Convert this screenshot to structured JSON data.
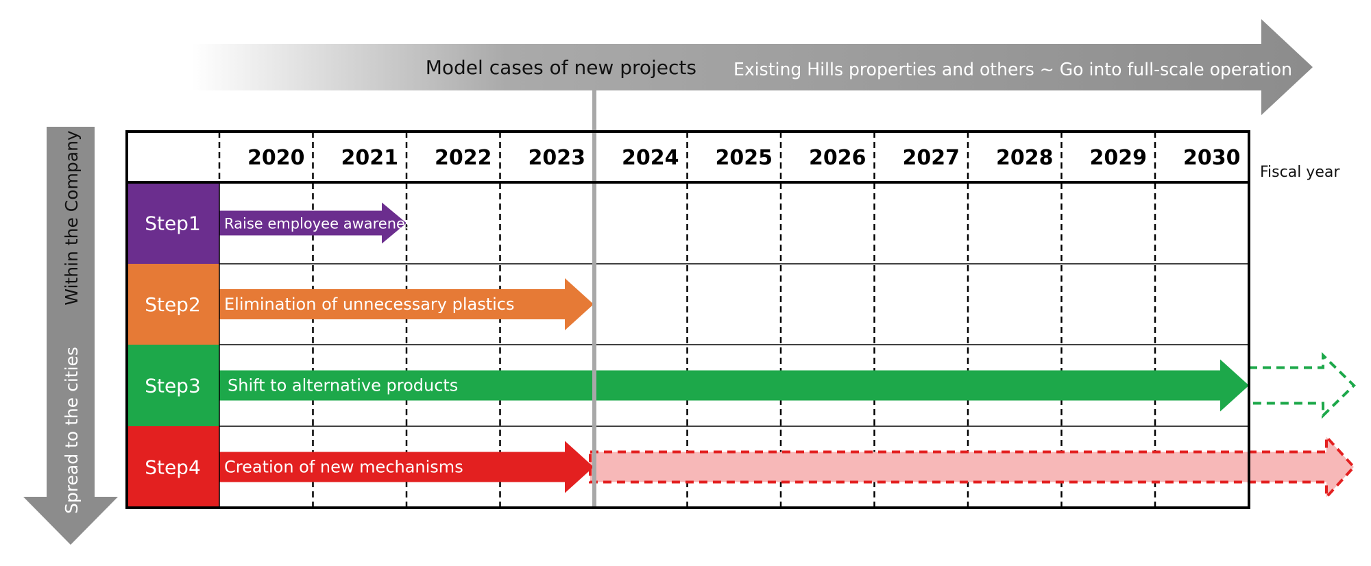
{
  "top_arrow": {
    "phase1_label": "Model cases of new projects",
    "phase2_label": "Existing Hills properties and others ~ Go into full-scale operation"
  },
  "side_arrow": {
    "upper_label": "Within the Company",
    "lower_label": "Spread to the cities"
  },
  "timeline": {
    "years": [
      "2020",
      "2021",
      "2022",
      "2023",
      "2024",
      "2025",
      "2026",
      "2027",
      "2028",
      "2029",
      "2030"
    ],
    "unit_label": "Fiscal year",
    "divider_year": "2024"
  },
  "steps": [
    {
      "label": "Step1",
      "text": "Raise employee awareness",
      "color": "#6b2e8e",
      "start": "2020",
      "end": "2021",
      "extension_end": null
    },
    {
      "label": "Step2",
      "text": "Elimination of unnecessary plastics",
      "color": "#e67a36",
      "start": "2020",
      "end": "2023",
      "extension_end": null
    },
    {
      "label": "Step3",
      "text": "Shift to alternative products",
      "color": "#1da84a",
      "start": "2020",
      "end": "2030",
      "extension_end": "beyond"
    },
    {
      "label": "Step4",
      "text": "Creation of new mechanisms",
      "color": "#e32020",
      "start": "2020",
      "end": "2023",
      "extension_end": "beyond"
    }
  ],
  "colors": {
    "frame": "#000000",
    "gray_arrow": "#8c8c8c",
    "divider": "#a8a8a8",
    "step4_extension_fill": "#f7b8b8"
  }
}
